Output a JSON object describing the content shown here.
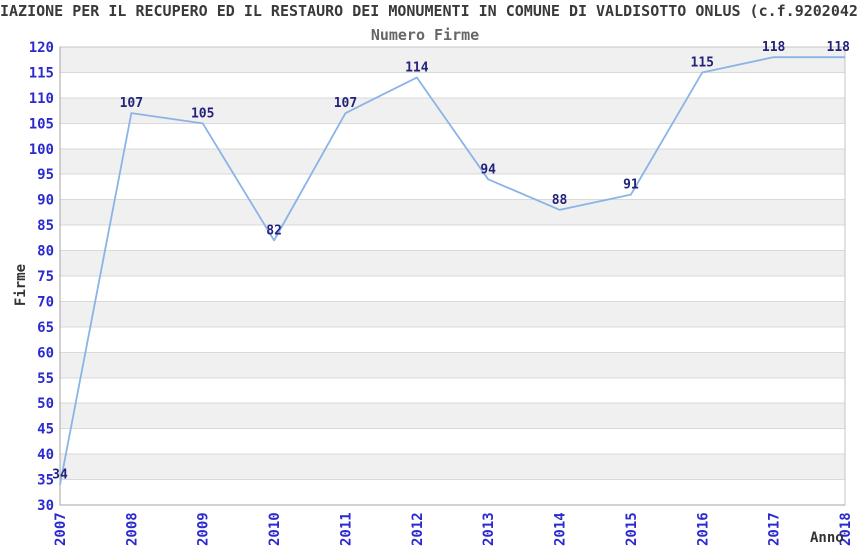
{
  "chart_data": {
    "type": "line",
    "title": "IAZIONE PER IL RECUPERO ED IL RESTAURO DEI MONUMENTI IN COMUNE DI VALDISOTTO ONLUS (c.f.9202042",
    "subtitle": "Numero Firme",
    "xlabel": "Anno",
    "ylabel": "Firme",
    "categories": [
      "2007",
      "2008",
      "2009",
      "2010",
      "2011",
      "2012",
      "2013",
      "2014",
      "2015",
      "2016",
      "2017",
      "2018"
    ],
    "series": [
      {
        "name": "Numero Firme",
        "values": [
          34,
          107,
          105,
          82,
          107,
          114,
          94,
          88,
          91,
          115,
          118,
          118
        ]
      }
    ],
    "point_labels": [
      "34",
      "107",
      "105",
      "82",
      "107",
      "114",
      "94",
      "88",
      "91",
      "115",
      "118",
      "118"
    ],
    "ylim": [
      30,
      120
    ],
    "ytick_step": 5,
    "yticks": [
      30,
      35,
      40,
      45,
      50,
      55,
      60,
      65,
      70,
      75,
      80,
      85,
      90,
      95,
      100,
      105,
      110,
      115,
      120
    ],
    "grid": "horizontal-lines-with-alternating-bands",
    "legend": "none",
    "colors": {
      "line": "#8ab4e6",
      "tick_label": "#2a2ace",
      "point_label": "#22227a",
      "title": "#3a3a3a",
      "subtitle": "#666666",
      "band": "#f0f0f0",
      "gridline": "#d9d9d9",
      "plot_border": "#c4c4c4",
      "axis_line": "#a6a6a6",
      "background": "#ffffff"
    }
  }
}
